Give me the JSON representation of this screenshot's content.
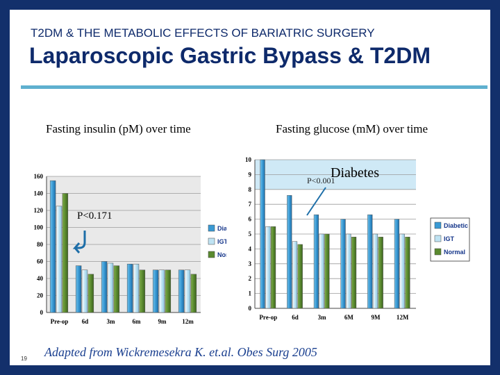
{
  "header": {
    "subtitle": "T2DM & THE METABOLIC EFFECTS OF BARIATRIC SURGERY",
    "title": "Laparoscopic Gastric Bypass & T2DM"
  },
  "source": "Adapted from Wickremesekra K. et.al. Obes Surg 2005",
  "slide_number": "19",
  "colors": {
    "background": "#13306b",
    "title": "#0e2a6b",
    "rule": "#5fb0cf",
    "diabetic": "#3a9ad4",
    "igt": "#bfe3f3",
    "normal": "#5a8a2f",
    "diabetes_zone": "#cfe9f6"
  },
  "chart_data": [
    {
      "type": "bar",
      "title": "Fasting insulin (pM) over time",
      "categories": [
        "Pre-op",
        "6d",
        "3m",
        "6m",
        "9m",
        "12m"
      ],
      "series": [
        {
          "name": "Diabetic",
          "values": [
            155,
            55,
            60,
            57,
            50,
            50
          ]
        },
        {
          "name": "IGT",
          "values": [
            125,
            50,
            58,
            57,
            50,
            50
          ]
        },
        {
          "name": "Normal",
          "values": [
            140,
            45,
            55,
            50,
            50,
            45
          ]
        }
      ],
      "legend": [
        "Dial",
        "IGT",
        "Nor"
      ],
      "ylim": [
        0,
        160
      ],
      "yticks": [
        "0",
        "20",
        "40",
        "60",
        "80",
        "100",
        "120",
        "140",
        "160"
      ],
      "annotation": "P<0.171"
    },
    {
      "type": "bar",
      "title": "Fasting glucose (mM) over time",
      "categories": [
        "Pre-op",
        "6d",
        "3m",
        "6M",
        "9M",
        "12M"
      ],
      "series": [
        {
          "name": "Diabetic",
          "values": [
            10,
            7.6,
            6.3,
            6.0,
            6.3,
            6.0
          ]
        },
        {
          "name": "IGT",
          "values": [
            5.5,
            4.5,
            5.0,
            5.0,
            5.0,
            5.0
          ]
        },
        {
          "name": "Normal",
          "values": [
            5.5,
            4.3,
            5.0,
            4.8,
            4.8,
            4.8
          ]
        }
      ],
      "legend": [
        "Diabetic",
        "IGT",
        "Normal"
      ],
      "ylim": [
        0,
        10
      ],
      "yticks": [
        "0",
        "1",
        "2",
        "3",
        "4",
        "5",
        "6",
        "7",
        "8",
        "9",
        "10"
      ],
      "zone": {
        "label": "Diabetes",
        "from": 8,
        "to": 10
      },
      "annotation": "P<0.001"
    }
  ]
}
